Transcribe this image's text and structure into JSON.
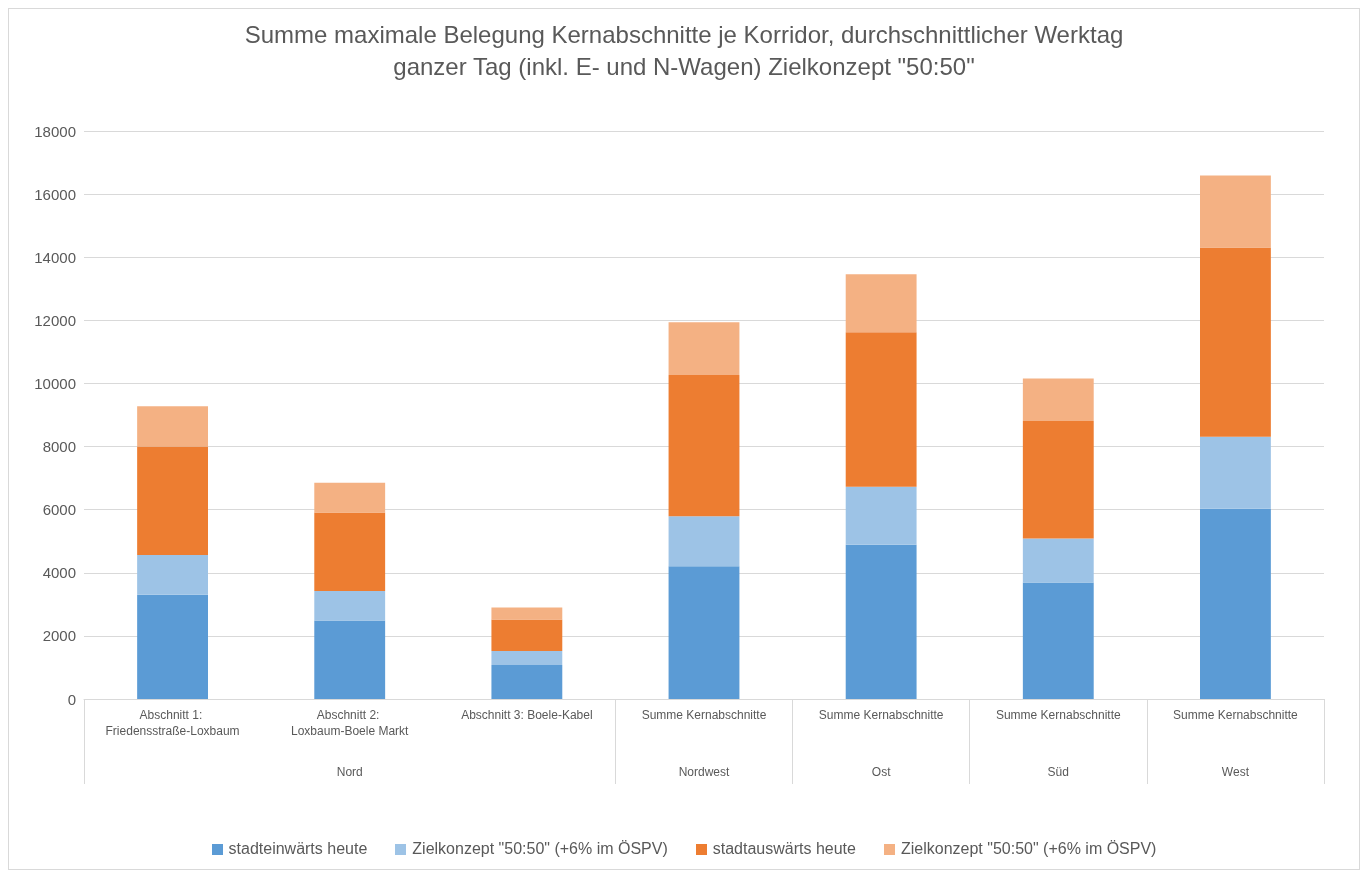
{
  "chart_data": {
    "type": "bar",
    "stacked": true,
    "title": "Summe maximale Belegung Kernabschnitte je Korridor, durchschnittlicher Werktag",
    "subtitle": "ganzer Tag (inkl. E- und N-Wagen) Zielkonzept \"50:50\"",
    "categories": [
      "Abschnitt 1: Friedensstraße-Loxbaum",
      "Abschnitt 2: Loxbaum-Boele Markt",
      "Abschnitt 3: Boele-Kabel",
      "Summe Kernabschnitte",
      "Summe Kernabschnitte",
      "Summe Kernabschnitte",
      "Summe Kernabschnitte"
    ],
    "annotations": [
      "Nord",
      "Nordwest",
      "Ost",
      "Süd",
      "West"
    ],
    "series": [
      {
        "name": "stadteinwärts heute",
        "color": "#5b9bd5",
        "values": [
          3300,
          2490,
          1080,
          4210,
          4890,
          3690,
          6030
        ]
      },
      {
        "name": "Zielkonzept \"50:50\" (+6% im ÖSPV)",
        "color": "#9dc3e6",
        "values": [
          1260,
          930,
          440,
          1580,
          1840,
          1400,
          2280
        ]
      },
      {
        "name": "stadtauswärts heute",
        "color": "#ed7d31",
        "values": [
          3440,
          2490,
          1000,
          4480,
          4890,
          3720,
          6000
        ]
      },
      {
        "name": "Zielkonzept \"50:50\" (+6% im ÖSPV)",
        "color": "#f4b183",
        "values": [
          1280,
          940,
          380,
          1670,
          1840,
          1350,
          2280
        ]
      }
    ],
    "ylim": [
      0,
      18000
    ],
    "yticks": [
      0,
      2000,
      4000,
      6000,
      8000,
      10000,
      12000,
      14000,
      16000,
      18000
    ],
    "grid": "y",
    "legend": "bottom"
  }
}
